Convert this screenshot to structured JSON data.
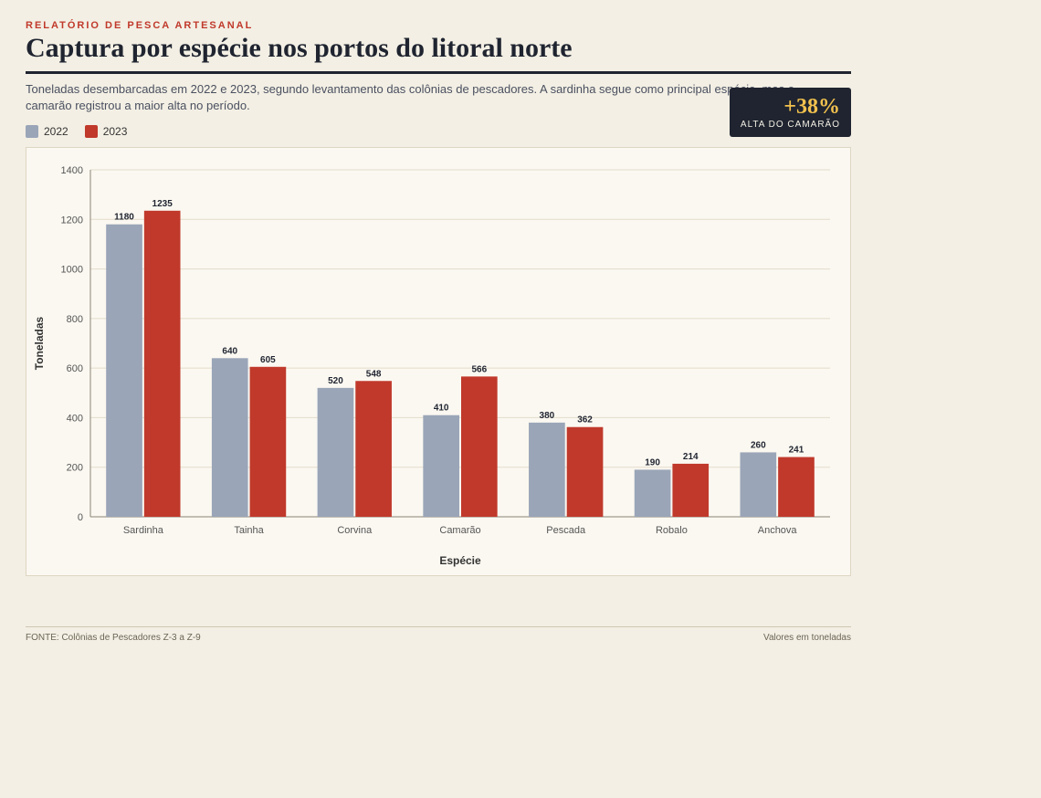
{
  "header": {
    "kicker": "Relatório de Pesca Artesanal",
    "title": "Captura por espécie nos portos do litoral norte",
    "subtitle": "Toneladas desembarcadas em 2022 e 2023, segundo levantamento das colônias de pescadores. A sardinha segue como principal espécie, mas o camarão registrou a maior alta no período."
  },
  "highlight": {
    "value": "+38%",
    "label": "Alta do camarão"
  },
  "legend": [
    {
      "name": "2022",
      "color": "#9aa5b8"
    },
    {
      "name": "2023",
      "color": "#c0392b"
    }
  ],
  "footer": {
    "source": "FONTE: Colônias de Pescadores Z-3 a Z-9",
    "note": "Valores em toneladas"
  },
  "chart_data": {
    "type": "bar",
    "title": "Captura por espécie nos portos do litoral norte",
    "xlabel": "Espécie",
    "ylabel": "Toneladas",
    "ylim": [
      0,
      1400
    ],
    "yticks": [
      0,
      200,
      400,
      600,
      800,
      1000,
      1200,
      1400
    ],
    "categories": [
      "Sardinha",
      "Tainha",
      "Corvina",
      "Camarão",
      "Pescada",
      "Robalo",
      "Anchova"
    ],
    "series": [
      {
        "name": "2022",
        "color": "#9aa5b8",
        "values": [
          1180,
          640,
          520,
          410,
          380,
          190,
          260
        ]
      },
      {
        "name": "2023",
        "color": "#c0392b",
        "values": [
          1235,
          605,
          548,
          566,
          362,
          214,
          241
        ]
      }
    ],
    "grid": true,
    "legend_position": "top-left"
  }
}
